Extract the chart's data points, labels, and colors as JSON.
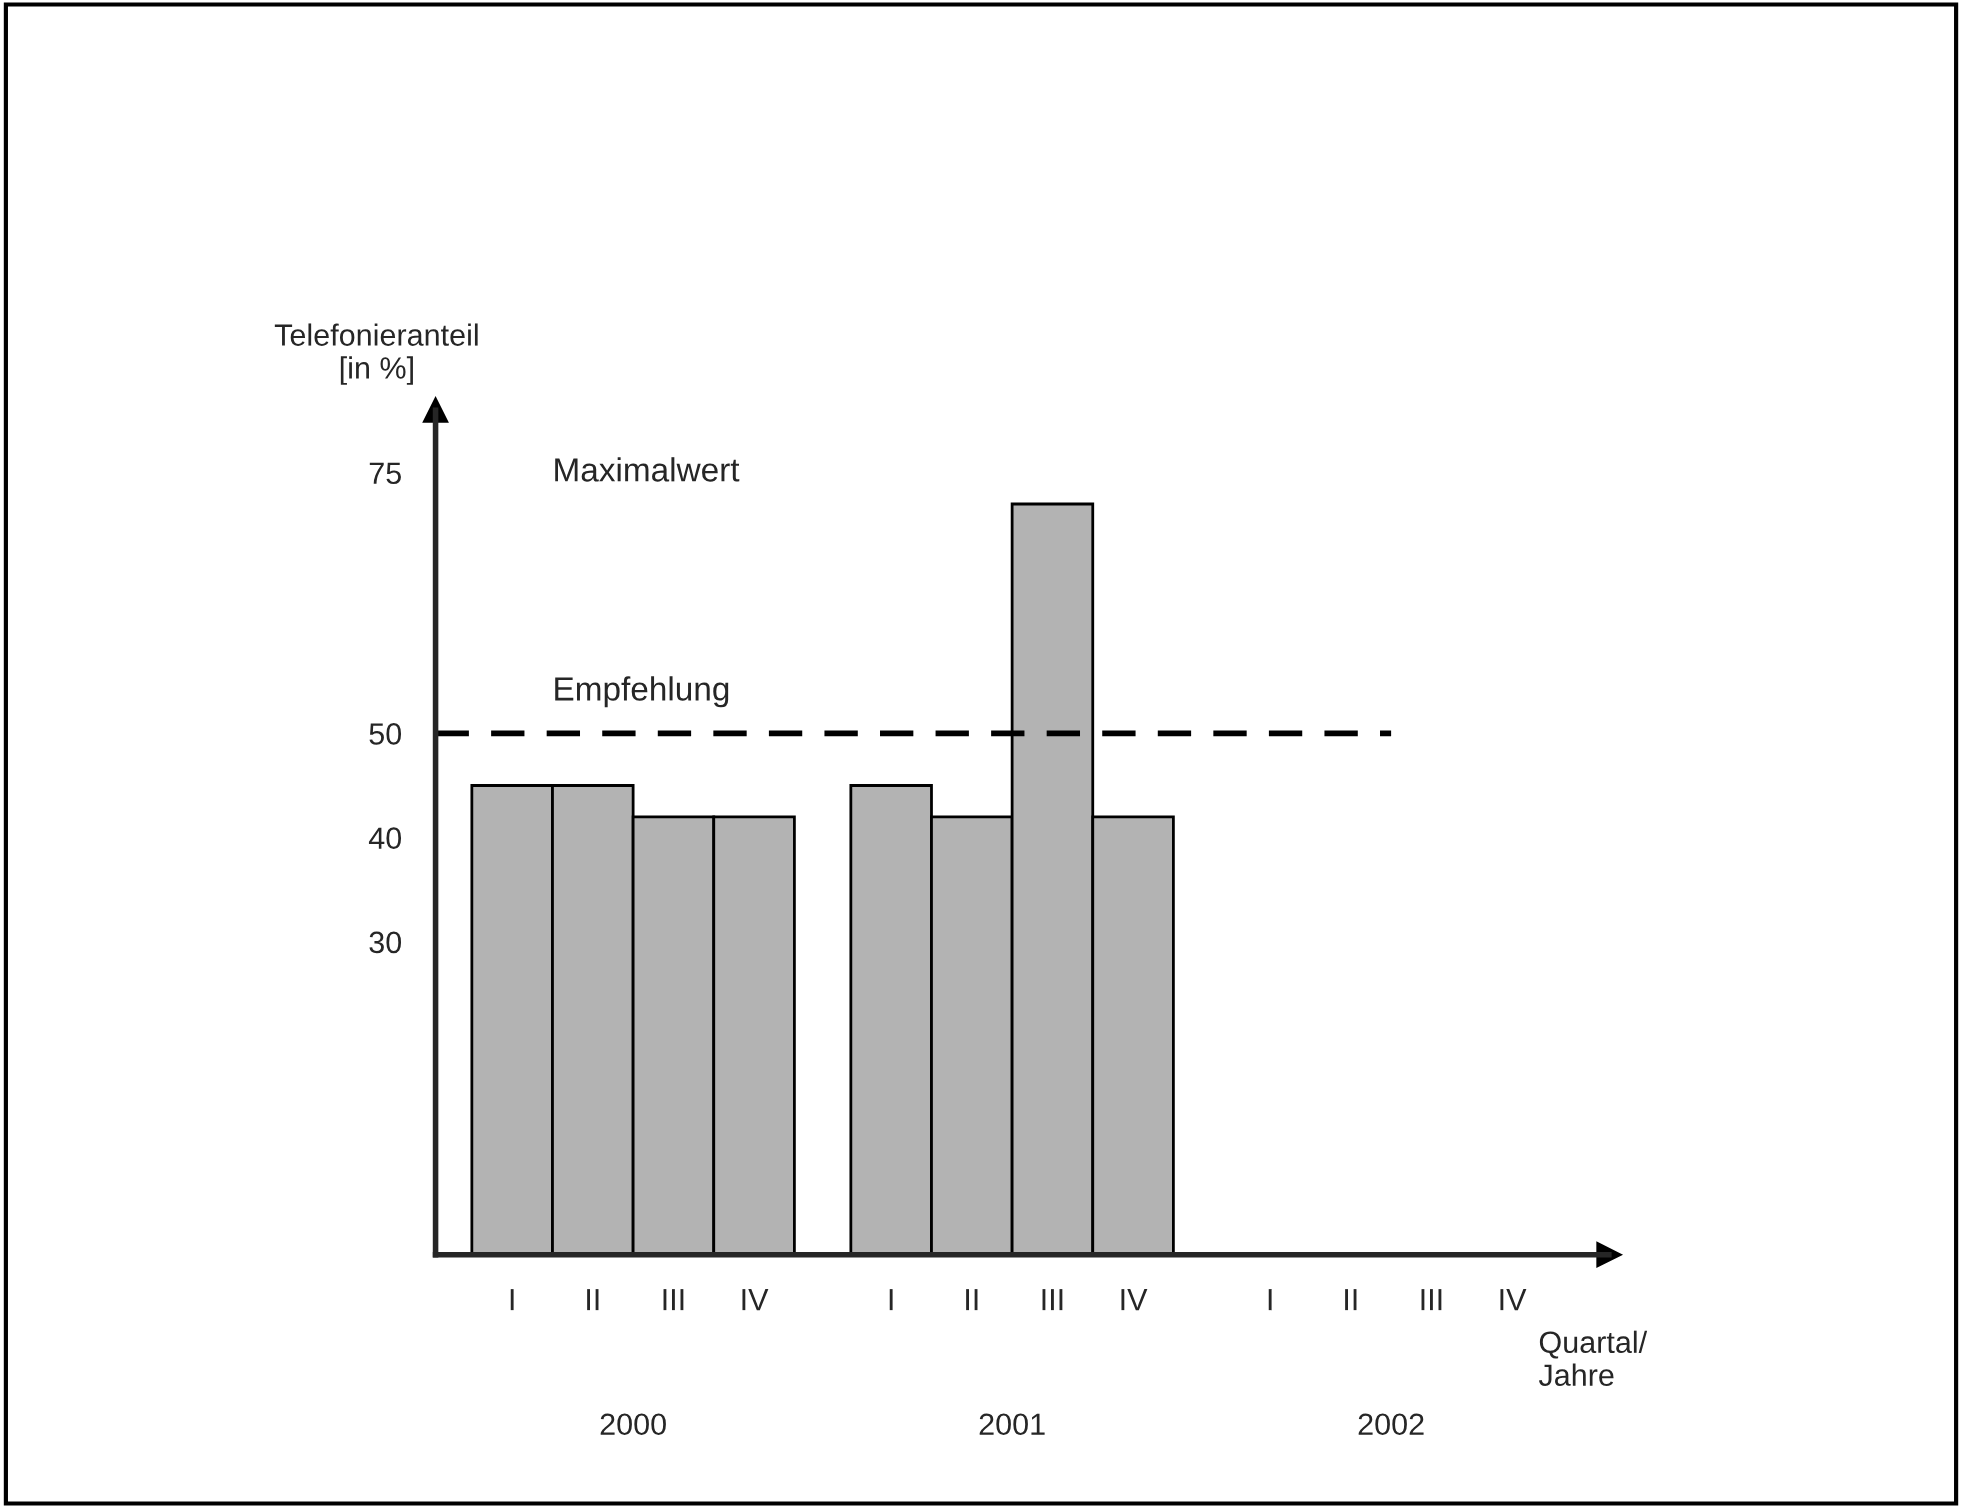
{
  "chart_data": {
    "type": "bar",
    "categories": [
      "I",
      "II",
      "III",
      "IV",
      "I",
      "II",
      "III",
      "IV",
      "I",
      "II",
      "III",
      "IV"
    ],
    "values": [
      45,
      45,
      42,
      42,
      45,
      42,
      72,
      42,
      null,
      null,
      null,
      null
    ],
    "color": "#b3b3b3",
    "ylabel": "Telefonieranteil\n[in %]",
    "xlabel": "Quartal/\nJahre",
    "ylim": [
      0,
      81
    ],
    "yticks": [
      30,
      40,
      50,
      75
    ],
    "ref_lines": [
      {
        "axis": "y",
        "value": 50,
        "label": "Empfehlung",
        "line_style": "dashed",
        "color": "#000000"
      }
    ],
    "annotations": [
      "Maximalwert",
      "2000",
      "2001",
      "2002"
    ],
    "grid": false,
    "legend": false
  }
}
